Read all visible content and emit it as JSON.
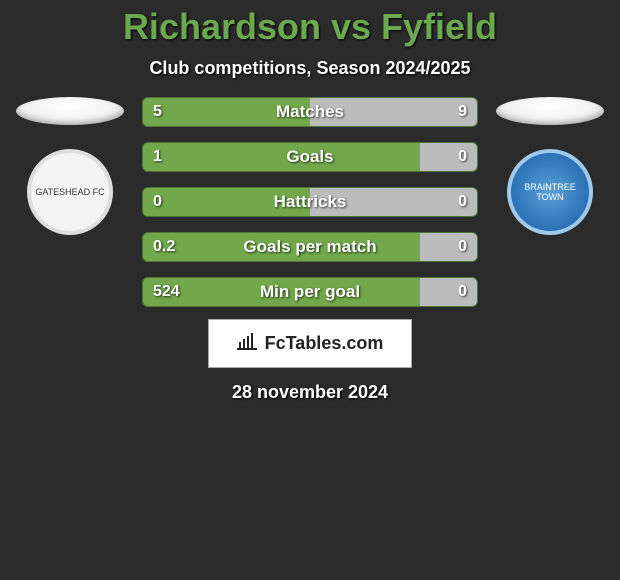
{
  "title": "Richardson vs Fyfield",
  "subtitle": "Club competitions, Season 2024/2025",
  "left_team": "GATESHEAD FC",
  "right_team": "BRAINTREE TOWN",
  "colors": {
    "left_bar": "#72a84b",
    "right_bar": "#bcbcbc",
    "background": "#2b2b2b",
    "title": "#6ba94e"
  },
  "bars": [
    {
      "label": "Matches",
      "left": "5",
      "right": "9",
      "right_fill_pct": 50
    },
    {
      "label": "Goals",
      "left": "1",
      "right": "0",
      "right_fill_pct": 17
    },
    {
      "label": "Hattricks",
      "left": "0",
      "right": "0",
      "right_fill_pct": 50
    },
    {
      "label": "Goals per match",
      "left": "0.2",
      "right": "0",
      "right_fill_pct": 17
    },
    {
      "label": "Min per goal",
      "left": "524",
      "right": "0",
      "right_fill_pct": 17
    }
  ],
  "brand": "FcTables.com",
  "date": "28 november 2024"
}
